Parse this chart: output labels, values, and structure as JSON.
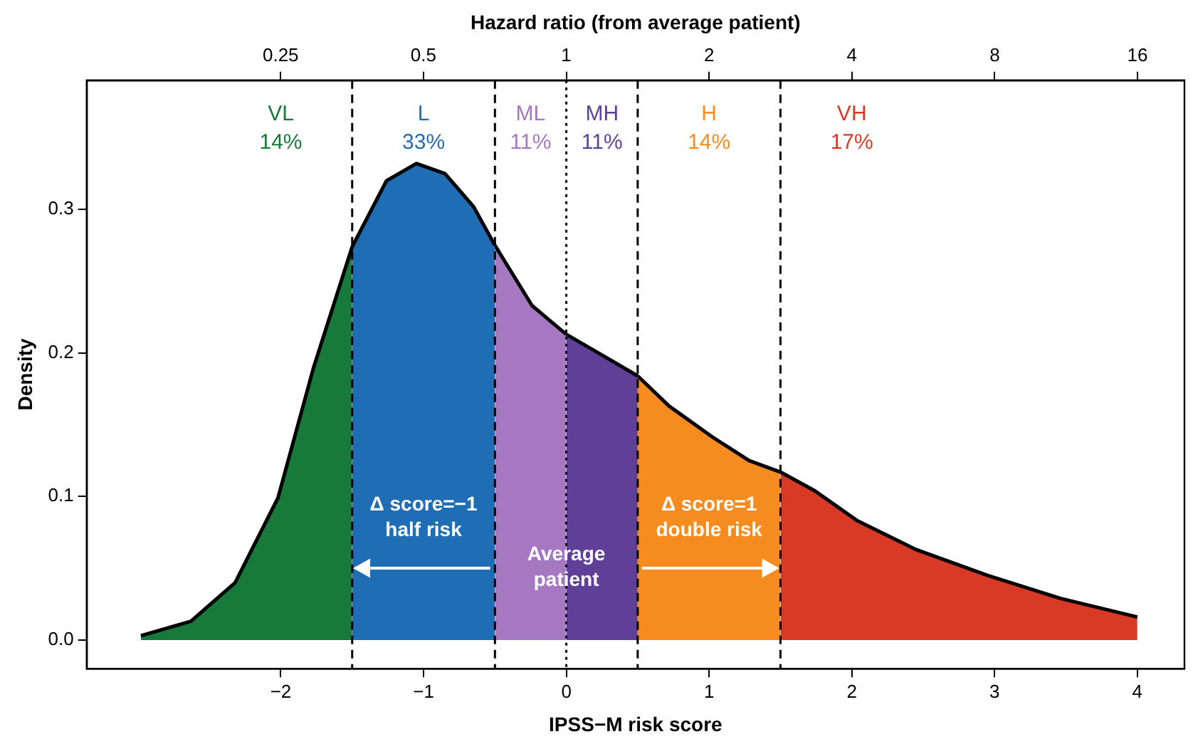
{
  "chart_data": {
    "type": "area",
    "xlabel": "IPSS−M risk score",
    "ylabel": "Density",
    "x2label": "Hazard ratio (from average patient)",
    "xlim": [
      -3.36,
      4.33
    ],
    "xticks": [
      {
        "value": -2,
        "label": "−2"
      },
      {
        "value": -1,
        "label": "−1"
      },
      0,
      1,
      2,
      3,
      4
    ],
    "x2lim": [
      0.0975,
      20.1
    ],
    "x2ticks": [
      0.25,
      0.5,
      1,
      2,
      4,
      8,
      16
    ],
    "log": "x2",
    "ylim": [
      -0.02,
      0.39
    ],
    "yticks": [
      {
        "value": 0,
        "label": "0.0"
      },
      0.1,
      0.2,
      0.3
    ],
    "grid": false,
    "legend": false,
    "series": [
      {
        "name": "VL",
        "color": "#187a3a",
        "x": [
          -2.98,
          -2.63,
          -2.32,
          -2.02,
          -1.77,
          -1.5
        ],
        "values": [
          0.003,
          0.013,
          0.04,
          0.099,
          0.19,
          0.274
        ]
      },
      {
        "name": "L",
        "color": "#1f6db5",
        "x": [
          -1.5,
          -1.26,
          -1.05,
          -0.85,
          -0.65,
          -0.5
        ],
        "values": [
          0.274,
          0.32,
          0.332,
          0.325,
          0.302,
          0.275
        ]
      },
      {
        "name": "ML",
        "color": "#a678c2",
        "x": [
          -0.5,
          -0.24,
          0
        ],
        "values": [
          0.275,
          0.233,
          0.213
        ]
      },
      {
        "name": "MH",
        "color": "#5f3f98",
        "x": [
          0,
          0.26,
          0.5
        ],
        "values": [
          0.213,
          0.198,
          0.184
        ]
      },
      {
        "name": "H",
        "color": "#f68b1f",
        "x": [
          0.5,
          0.72,
          1.03,
          1.28,
          1.5
        ],
        "values": [
          0.184,
          0.163,
          0.141,
          0.125,
          0.117
        ]
      },
      {
        "name": "VH",
        "color": "#d83a25",
        "x": [
          1.5,
          1.74,
          2.04,
          2.45,
          2.95,
          3.46,
          4.0
        ],
        "values": [
          0.117,
          0.104,
          0.083,
          0.063,
          0.045,
          0.029,
          0.016
        ]
      }
    ],
    "ref_lines": [
      {
        "axis": "x",
        "value": -1.5,
        "line_style": "dashed"
      },
      {
        "axis": "x",
        "value": -0.5,
        "line_style": "dashed"
      },
      {
        "axis": "x",
        "value": 0,
        "line_style": "dotted"
      },
      {
        "axis": "x",
        "value": 0.5,
        "line_style": "dashed"
      },
      {
        "axis": "x",
        "value": 1.5,
        "line_style": "dashed"
      }
    ],
    "annotations": [
      "14%",
      "33%",
      "11%",
      "11%",
      "14%",
      "17%",
      "Δ score=−1\nhalf risk",
      "Average\npatient",
      "Δ score=1\ndouble risk"
    ]
  }
}
